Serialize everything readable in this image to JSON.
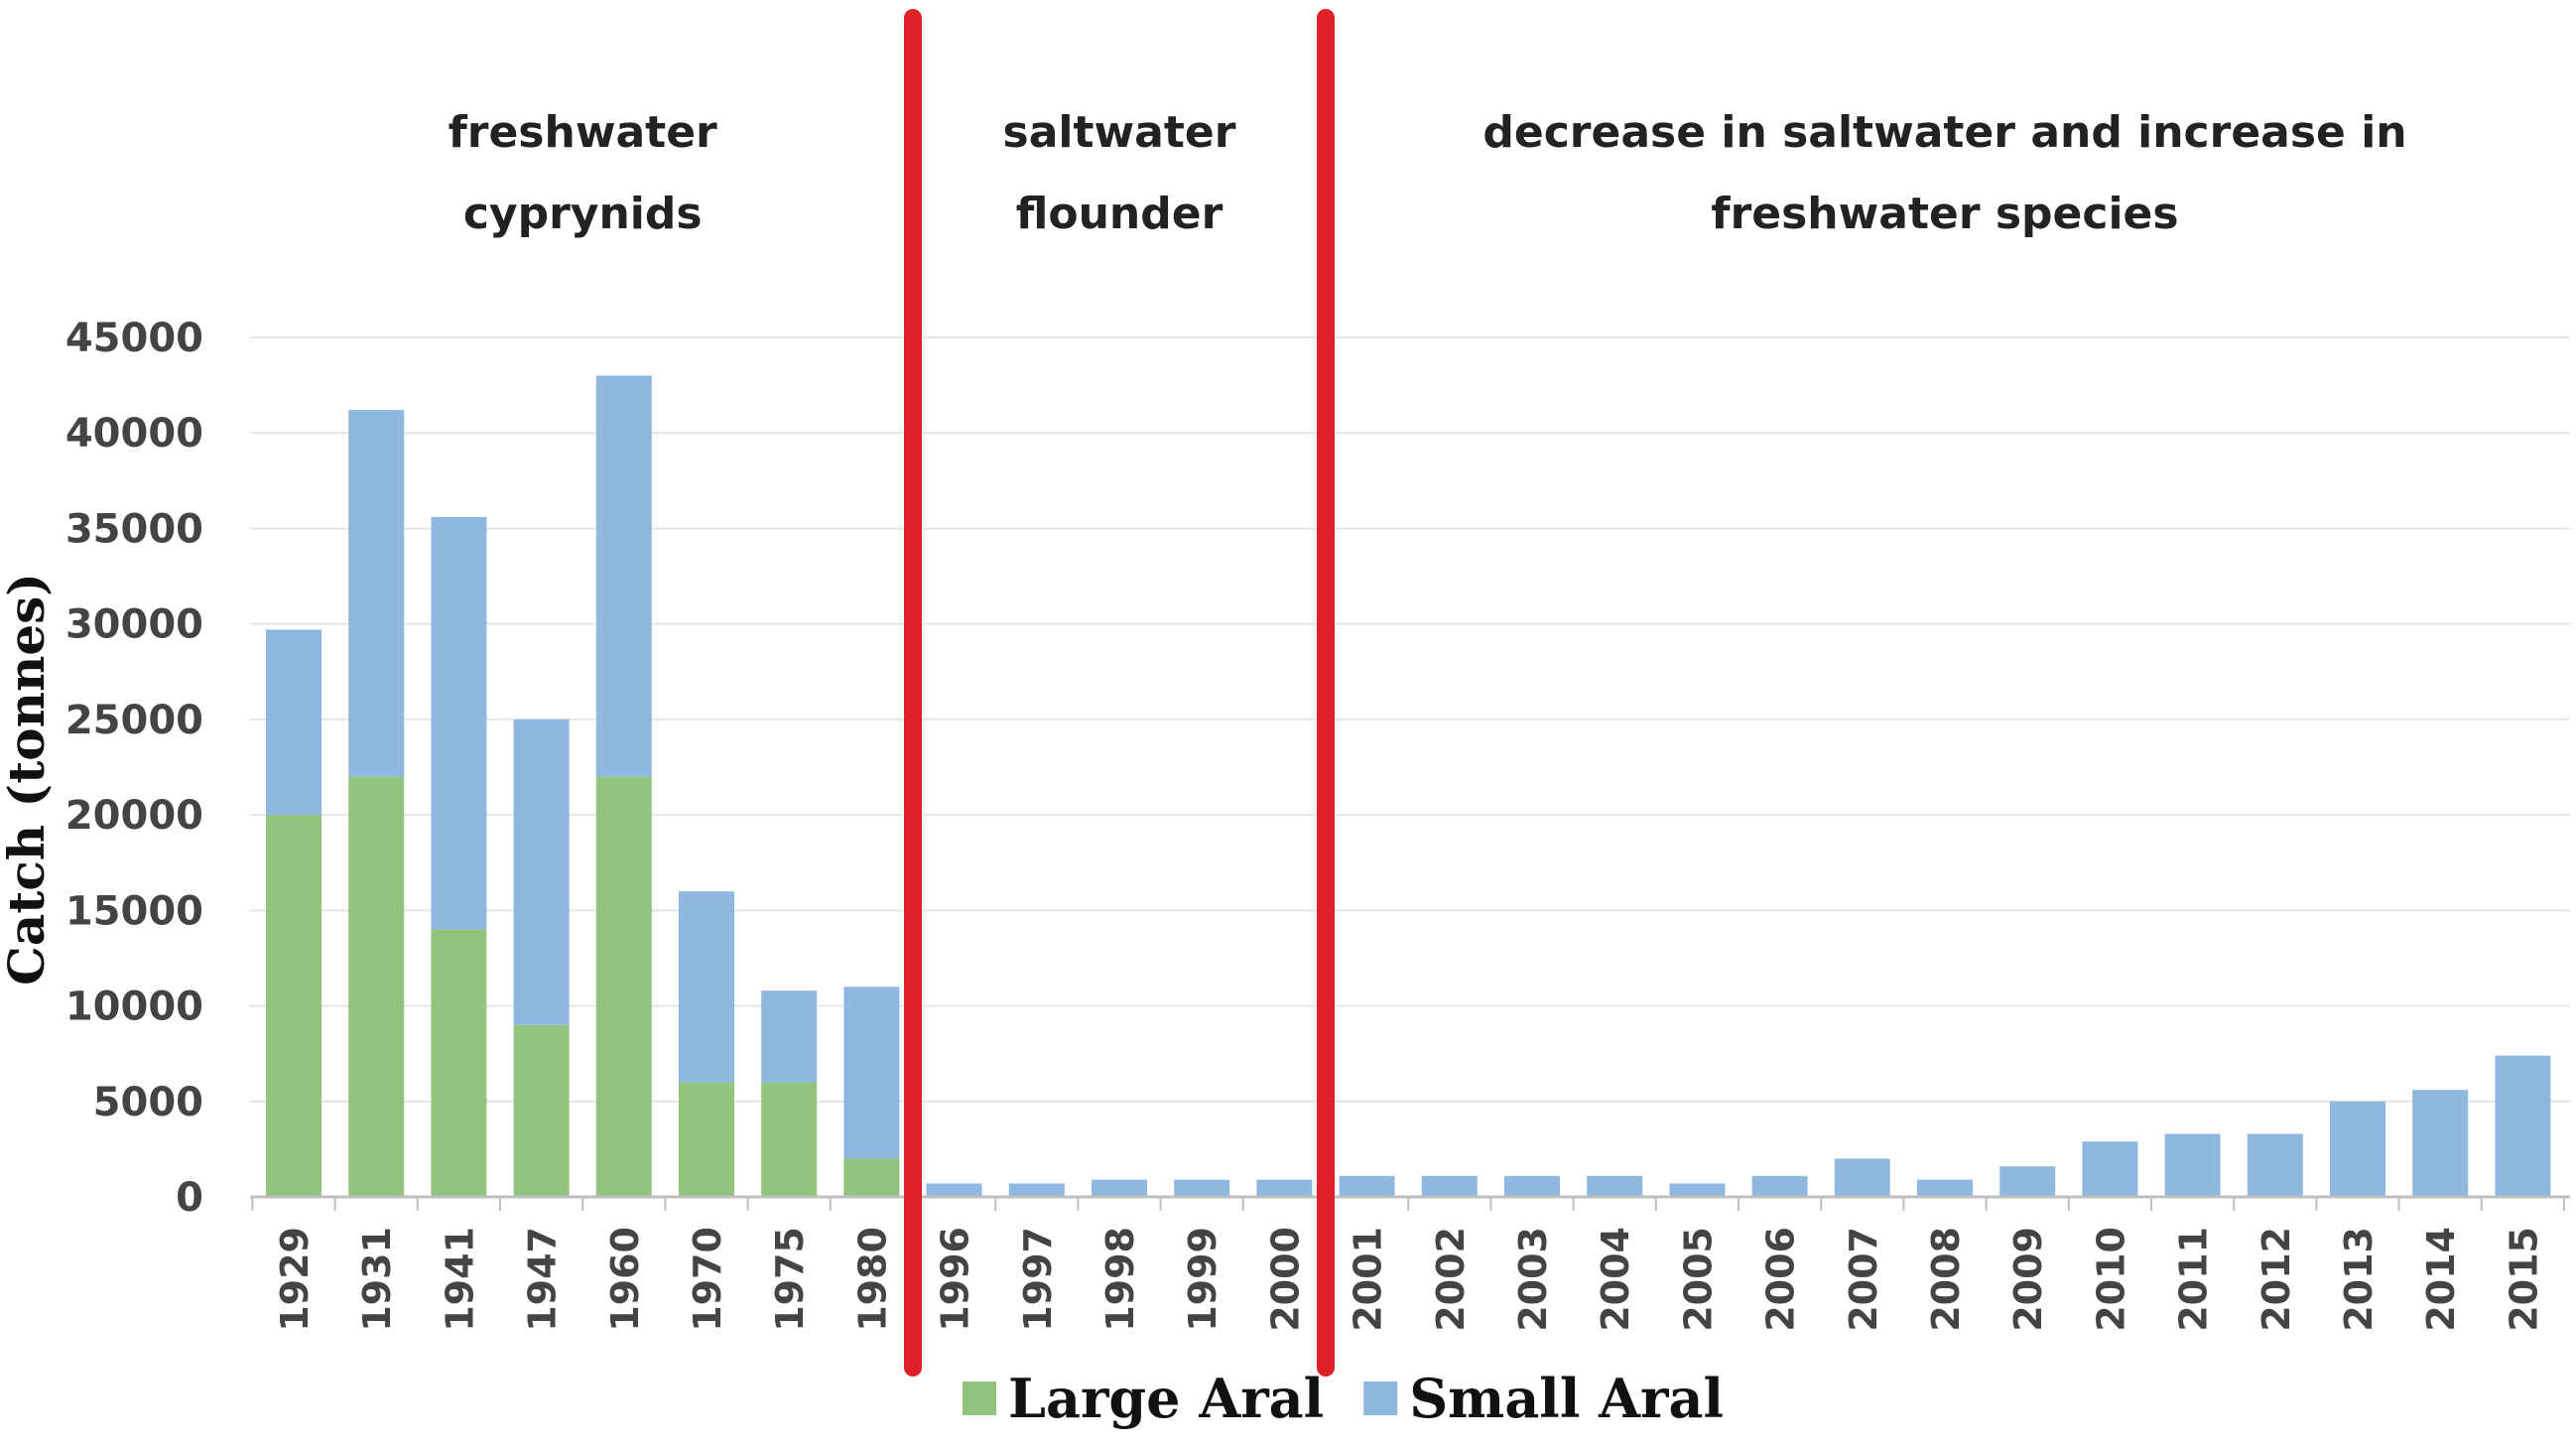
{
  "chart_data": {
    "type": "bar",
    "stacked": true,
    "title": "",
    "xlabel": "",
    "ylabel": "Catch (tonnes)",
    "ylim": [
      0,
      45000
    ],
    "yticks": [
      0,
      5000,
      10000,
      15000,
      20000,
      25000,
      30000,
      35000,
      40000,
      45000
    ],
    "grid": true,
    "legend_position": "bottom",
    "categories": [
      "1929",
      "1931",
      "1941",
      "1947",
      "1960",
      "1970",
      "1975",
      "1980",
      "1996",
      "1997",
      "1998",
      "1999",
      "2000",
      "2001",
      "2002",
      "2003",
      "2004",
      "2005",
      "2006",
      "2007",
      "2008",
      "2009",
      "2010",
      "2011",
      "2012",
      "2013",
      "2014",
      "2015"
    ],
    "series": [
      {
        "name": "Large Aral",
        "color": "#93c47d",
        "values": [
          20000,
          22000,
          14000,
          9000,
          22000,
          6000,
          6000,
          2000,
          0,
          0,
          0,
          0,
          0,
          0,
          0,
          0,
          0,
          0,
          0,
          0,
          0,
          0,
          0,
          0,
          0,
          0,
          0,
          0
        ]
      },
      {
        "name": "Small Aral",
        "color": "#8fb8e0",
        "values": [
          9700,
          19200,
          21600,
          16000,
          21000,
          10000,
          4800,
          9000,
          700,
          700,
          900,
          900,
          900,
          1100,
          1100,
          1100,
          1100,
          700,
          1100,
          2000,
          900,
          1600,
          2900,
          3300,
          3300,
          5000,
          5600,
          7400
        ]
      }
    ],
    "dividers": [
      {
        "after_category": "1980",
        "color": "#e02027"
      },
      {
        "after_category": "2000",
        "color": "#e02027"
      }
    ],
    "annotations": [
      {
        "lines": [
          "freshwater",
          "cyprynids"
        ],
        "over": [
          "1929",
          "1980"
        ]
      },
      {
        "lines": [
          "saltwater",
          "flounder"
        ],
        "over": [
          "1996",
          "2000"
        ]
      },
      {
        "lines": [
          "decrease in saltwater and increase in",
          "freshwater species"
        ],
        "over": [
          "2001",
          "2015"
        ]
      }
    ]
  }
}
